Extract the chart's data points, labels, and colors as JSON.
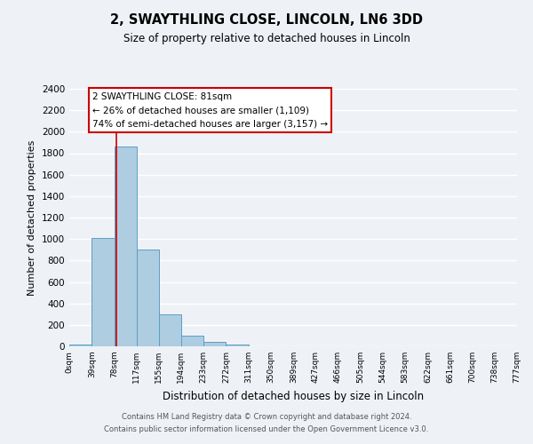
{
  "title_line1": "2, SWAYTHLING CLOSE, LINCOLN, LN6 3DD",
  "title_line2": "Size of property relative to detached houses in Lincoln",
  "xlabel": "Distribution of detached houses by size in Lincoln",
  "ylabel": "Number of detached properties",
  "bin_edges": [
    0,
    39,
    78,
    117,
    155,
    194,
    233,
    272,
    311,
    350,
    389,
    427,
    466,
    505,
    544,
    583,
    622,
    661,
    700,
    738,
    777
  ],
  "bar_heights": [
    20,
    1010,
    1860,
    900,
    300,
    100,
    45,
    20,
    0,
    0,
    0,
    0,
    0,
    0,
    0,
    0,
    0,
    0,
    0,
    0
  ],
  "bar_color": "#aecde0",
  "bar_edge_color": "#5b9ec9",
  "property_line_x": 81,
  "property_line_color": "#cc0000",
  "ylim": [
    0,
    2400
  ],
  "yticks": [
    0,
    200,
    400,
    600,
    800,
    1000,
    1200,
    1400,
    1600,
    1800,
    2000,
    2200,
    2400
  ],
  "tick_labels": [
    "0sqm",
    "39sqm",
    "78sqm",
    "117sqm",
    "155sqm",
    "194sqm",
    "233sqm",
    "272sqm",
    "311sqm",
    "350sqm",
    "389sqm",
    "427sqm",
    "466sqm",
    "505sqm",
    "544sqm",
    "583sqm",
    "622sqm",
    "661sqm",
    "700sqm",
    "738sqm",
    "777sqm"
  ],
  "annotation_title": "2 SWAYTHLING CLOSE: 81sqm",
  "annotation_line1": "← 26% of detached houses are smaller (1,109)",
  "annotation_line2": "74% of semi-detached houses are larger (3,157) →",
  "annotation_box_color": "#ffffff",
  "annotation_border_color": "#cc0000",
  "footer_line1": "Contains HM Land Registry data © Crown copyright and database right 2024.",
  "footer_line2": "Contains public sector information licensed under the Open Government Licence v3.0.",
  "background_color": "#eef2f7",
  "grid_color": "#ffffff"
}
